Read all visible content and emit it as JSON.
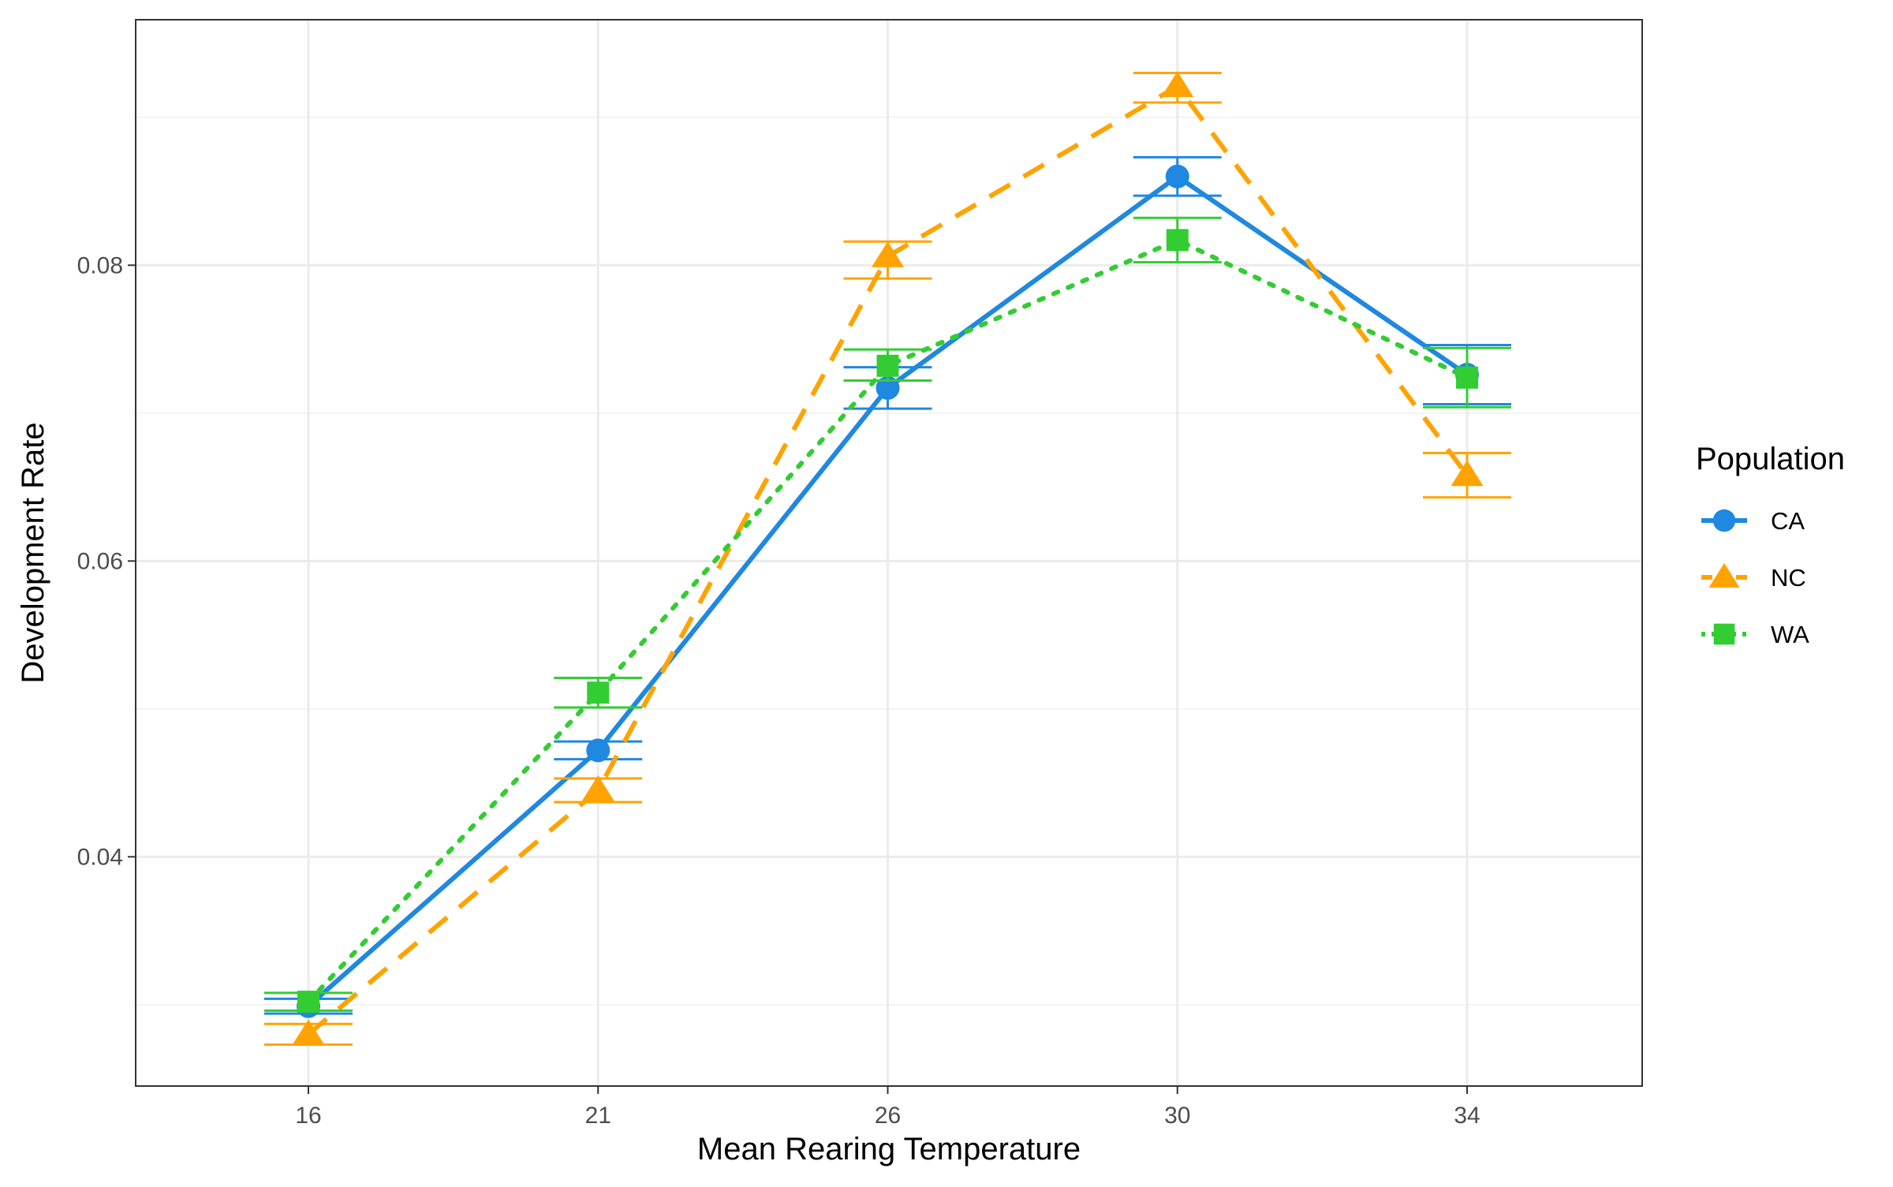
{
  "chart_data": {
    "type": "line",
    "xlabel": "Mean Rearing Temperature",
    "ylabel": "Development Rate",
    "categories": [
      "16",
      "21",
      "26",
      "30",
      "34"
    ],
    "ylim": [
      0.0245,
      0.0966
    ],
    "yticks": [
      0.04,
      0.06,
      0.08
    ],
    "ytick_labels": [
      "0.04",
      "0.06",
      "0.08"
    ],
    "grid": true,
    "legend": {
      "title": "Population",
      "position": "right"
    },
    "series": [
      {
        "name": "CA",
        "color": "#1f88e0",
        "line_style": "solid",
        "marker": "circle",
        "values": [
          0.0299,
          0.0472,
          0.0717,
          0.086,
          0.0726
        ],
        "error_low": [
          0.0294,
          0.0466,
          0.0703,
          0.0847,
          0.0706
        ],
        "error_high": [
          0.0304,
          0.0478,
          0.0731,
          0.0873,
          0.0746
        ]
      },
      {
        "name": "NC",
        "color": "#ffa300",
        "line_style": "dashed",
        "marker": "triangle",
        "values": [
          0.028,
          0.0445,
          0.0806,
          0.0921,
          0.0658
        ],
        "error_low": [
          0.0273,
          0.0437,
          0.0791,
          0.091,
          0.0643
        ],
        "error_high": [
          0.0287,
          0.0453,
          0.0816,
          0.093,
          0.0673
        ]
      },
      {
        "name": "WA",
        "color": "#33cc33",
        "line_style": "dotted",
        "marker": "square",
        "values": [
          0.0302,
          0.0511,
          0.0732,
          0.0817,
          0.0724
        ],
        "error_low": [
          0.0296,
          0.0501,
          0.0722,
          0.0802,
          0.0704
        ],
        "error_high": [
          0.0308,
          0.0521,
          0.0743,
          0.0832,
          0.0744
        ]
      }
    ]
  }
}
